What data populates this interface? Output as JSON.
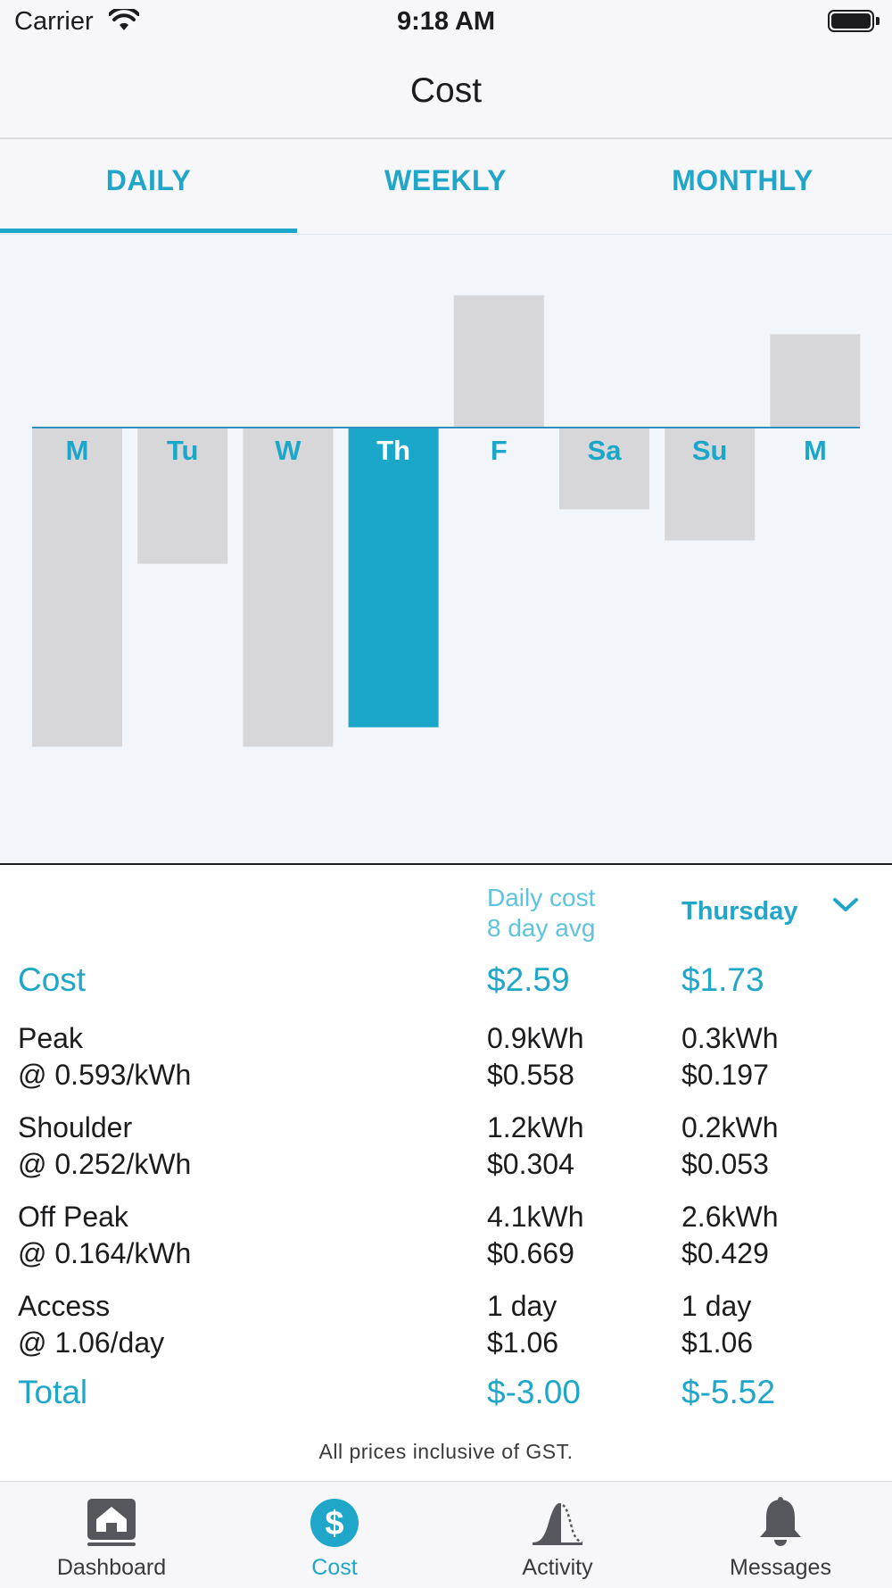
{
  "status_bar": {
    "carrier": "Carrier",
    "time": "9:18 AM"
  },
  "nav": {
    "title": "Cost"
  },
  "tabs": [
    {
      "label": "DAILY",
      "active": true
    },
    {
      "label": "WEEKLY",
      "active": false
    },
    {
      "label": "MONTHLY",
      "active": false
    }
  ],
  "chart_data": {
    "type": "bar",
    "categories": [
      "M",
      "Tu",
      "W",
      "Th",
      "F",
      "Sa",
      "Su",
      "M"
    ],
    "values": [
      -0.82,
      -0.35,
      -0.82,
      -0.77,
      0.34,
      -0.21,
      -0.29,
      0.24
    ],
    "selected_index": 3,
    "colors": {
      "bar": "#d7d6d8",
      "selected": "#1ba7c9",
      "baseline": "#2f8fc0",
      "label": "#1ba7c9",
      "selected_label": "#ffffff"
    }
  },
  "summary": {
    "avg_header_line1": "Daily cost",
    "avg_header_line2": "8 day avg",
    "day_header": "Thursday",
    "rows": [
      {
        "label1": "Cost",
        "avg1": "$2.59",
        "day1": "$1.73",
        "accent": true
      },
      {
        "label1": "Peak",
        "label2": "@ 0.593/kWh",
        "avg1": "0.9kWh",
        "avg2": "$0.558",
        "day1": "0.3kWh",
        "day2": "$0.197"
      },
      {
        "label1": "Shoulder",
        "label2": "@ 0.252/kWh",
        "avg1": "1.2kWh",
        "avg2": "$0.304",
        "day1": "0.2kWh",
        "day2": "$0.053"
      },
      {
        "label1": "Off Peak",
        "label2": "@ 0.164/kWh",
        "avg1": "4.1kWh",
        "avg2": "$0.669",
        "day1": "2.6kWh",
        "day2": "$0.429"
      },
      {
        "label1": "Access",
        "label2": "@ 1.06/day",
        "avg1": "1 day",
        "avg2": "$1.06",
        "day1": "1 day",
        "day2": "$1.06"
      },
      {
        "label1": "Total",
        "avg1": "$-3.00",
        "day1": "$-5.52",
        "accent": true
      }
    ],
    "footnote": "All prices inclusive of GST."
  },
  "tab_bar": {
    "items": [
      {
        "label": "Dashboard",
        "icon": "home-icon",
        "active": false
      },
      {
        "label": "Cost",
        "icon": "dollar-icon",
        "active": true
      },
      {
        "label": "Activity",
        "icon": "activity-icon",
        "active": false
      },
      {
        "label": "Messages",
        "icon": "bell-icon",
        "active": false
      }
    ],
    "accent": "#1fa6c9",
    "inactive": "#55575c"
  }
}
